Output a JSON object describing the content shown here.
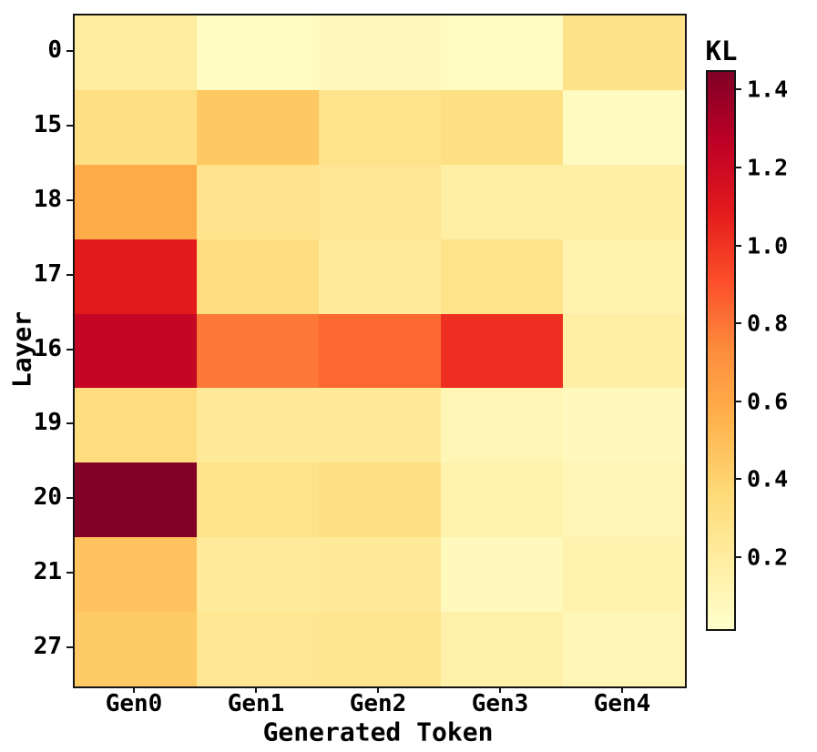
{
  "figure": {
    "background": "#ffffff",
    "text_color": "#000000",
    "frame_color": "#141414"
  },
  "chart_data": {
    "type": "heatmap",
    "title": "",
    "xlabel": "Generated Token",
    "ylabel": "Layer",
    "x_categories": [
      "Gen0",
      "Gen1",
      "Gen2",
      "Gen3",
      "Gen4"
    ],
    "y_categories": [
      "0",
      "15",
      "18",
      "17",
      "16",
      "19",
      "20",
      "21",
      "27"
    ],
    "values": [
      [
        0.2,
        0.05,
        0.07,
        0.05,
        0.29
      ],
      [
        0.31,
        0.45,
        0.28,
        0.31,
        0.06
      ],
      [
        0.58,
        0.27,
        0.25,
        0.17,
        0.17
      ],
      [
        1.09,
        0.33,
        0.21,
        0.28,
        0.13
      ],
      [
        1.23,
        0.79,
        0.83,
        1.02,
        0.17
      ],
      [
        0.33,
        0.22,
        0.22,
        0.1,
        0.07
      ],
      [
        1.44,
        0.28,
        0.31,
        0.14,
        0.1
      ],
      [
        0.47,
        0.21,
        0.22,
        0.07,
        0.13
      ],
      [
        0.44,
        0.25,
        0.26,
        0.15,
        0.11
      ]
    ],
    "colorbar": {
      "title": "KL",
      "tick_labels": [
        "0.2",
        "0.4",
        "0.6",
        "0.8",
        "1.0",
        "1.2",
        "1.4"
      ],
      "tick_values": [
        0.2,
        0.4,
        0.6,
        0.8,
        1.0,
        1.2,
        1.4
      ],
      "vmin": 0.01,
      "vmax": 1.45,
      "position": "right"
    },
    "colormap": {
      "name": "YlOrRd",
      "stops": [
        "#ffffcc",
        "#ffeda0",
        "#fed976",
        "#feb24c",
        "#fd8d3c",
        "#fc4e2a",
        "#e31a1c",
        "#bd0026",
        "#800026"
      ]
    },
    "grid": false,
    "legend": false
  }
}
